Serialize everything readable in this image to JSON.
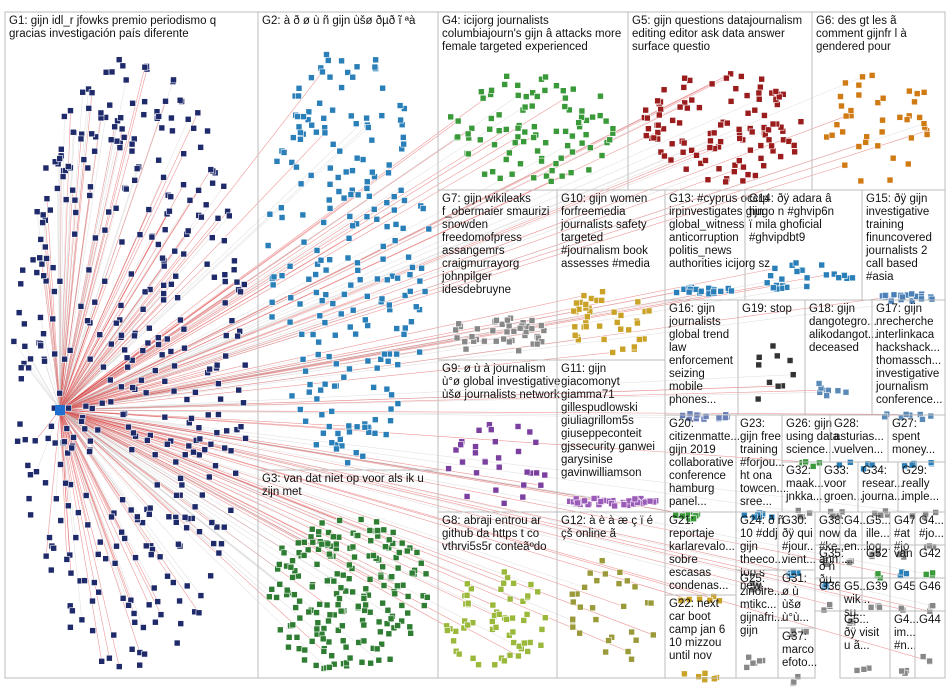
{
  "groups": [
    {
      "lines": [
        "G1: gijn idl_r jfowks premio periodismo q",
        "gracias investigación país diferente"
      ]
    },
    {
      "lines": [
        "G2: à ð ø ù ñ gijn ùšø ðµð ĩ ªà"
      ]
    },
    {
      "lines": [
        "G3: van dat niet op voor als ik u",
        "zijn met"
      ]
    },
    {
      "lines": [
        "G4: icijorg journalists",
        "columbiajourn's gijn â attacks more",
        "female targeted experienced"
      ]
    },
    {
      "lines": [
        "G5: gijn questions datajournalism",
        "editing editor ask data answer",
        "surface questio"
      ]
    },
    {
      "lines": [
        "G6: des gt les ã",
        "comment gijnfr l à",
        "gendered pour"
      ]
    },
    {
      "lines": [
        "G7: gijn wikileaks",
        "f_obermaier smaurizi",
        "snowden",
        "freedomofpress",
        "assangemrs",
        "craigmurrayorg",
        "johnpilger",
        "idesdebruyne"
      ]
    },
    {
      "lines": [
        "G10: gijn women",
        "forfreemedia",
        "journalists safety",
        "targeted",
        "#journalism book",
        "assesses #media"
      ]
    },
    {
      "lines": [
        "G13: #cyprus occrp",
        "irpinvestigates gijn",
        "global_witness",
        "anticorruption",
        "politis_news",
        "authorities icijorg sz"
      ]
    },
    {
      "lines": [
        "G14: ðÿ adara â",
        "hugo n #ghvip6n",
        "ï mila ghoficial",
        "#ghvipdbt9"
      ]
    },
    {
      "lines": [
        "G15: ðÿ gijn",
        "investigative",
        "training",
        "finuncovered",
        "journalists 2",
        "call based",
        "#asia"
      ]
    },
    {
      "lines": [
        "G16: gijn",
        "journalists",
        "global trend",
        "law",
        "enforcement",
        "seizing",
        "mobile",
        "phones..."
      ]
    },
    {
      "lines": [
        "G19: stop"
      ]
    },
    {
      "lines": [
        "G18: gijn",
        "dangotegro...",
        "alikodangot...",
        "deceased"
      ]
    },
    {
      "lines": [
        "G17: gijn",
        "nrecherche",
        "interlinkaca",
        "hackshack...",
        "thomassch...",
        "investigative",
        "journalism",
        "conference..."
      ]
    },
    {
      "lines": [
        "G9: ø ù à journalism",
        "ù°ø global investigative",
        "ùšø journalists network"
      ]
    },
    {
      "lines": [
        "G11: gijn",
        "giacomonyt",
        "giamma71",
        "gillespudlowski",
        "giuliagrillom5s",
        "giuseppeconteit",
        "gjssecurity ganwei",
        "garysinise",
        "gavinwilliamson"
      ]
    },
    {
      "lines": [
        "G20:",
        "citizenmatte...",
        "gijn 2019",
        "collaborative",
        "conference",
        "hamburg",
        "panel..."
      ]
    },
    {
      "lines": [
        "G23:",
        "gijn free",
        "training",
        "#forjou...",
        "ht ona",
        "towcen...",
        "sree..."
      ]
    },
    {
      "lines": [
        "G26: gijn",
        "using data",
        "science..."
      ]
    },
    {
      "lines": [
        "G28:",
        "asturias...",
        "vuelven..."
      ]
    },
    {
      "lines": [
        "G27:",
        "spent",
        "money..."
      ]
    },
    {
      "lines": [
        "G32:",
        "maak...",
        "jnkka..."
      ]
    },
    {
      "lines": [
        "G33:",
        "voor",
        "groen..."
      ]
    },
    {
      "lines": [
        "G34:",
        "resear...",
        "journa..."
      ]
    },
    {
      "lines": [
        "G29:",
        "really",
        "imple..."
      ]
    },
    {
      "lines": [
        "G8: abraji entrou ar",
        "github da https t co",
        "vthrvi5s5r conteãºdo"
      ]
    },
    {
      "lines": [
        "G12: à è à æ ç ï é",
        "çš online ã"
      ]
    },
    {
      "lines": [
        "G21:",
        "reportaje",
        "karlarevalo...",
        "sobre",
        "escasas",
        "condenas..."
      ]
    },
    {
      "lines": [
        "G24: ð ñ",
        "10 #ddj",
        "gijn",
        "theeco...",
        "top s",
        "new..."
      ]
    },
    {
      "lines": [
        "G30:",
        "ðÿ qui",
        "#jour...",
        "vient..."
      ]
    },
    {
      "lines": [
        "G38:",
        "now",
        "#ke...",
        "ann..."
      ]
    },
    {
      "lines": [
        "G4...",
        "da",
        "en...",
        "..."
      ]
    },
    {
      "lines": [
        "G5...",
        "ille...",
        "log..."
      ]
    },
    {
      "lines": [
        "G47",
        "#at",
        "#jo"
      ]
    },
    {
      "lines": [
        "G4...",
        "#jo..."
      ]
    },
    {
      "lines": [
        "G35:",
        "ð ñ",
        "ðµ..."
      ]
    },
    {
      "lines": [
        "G52"
      ]
    },
    {
      "lines": [
        "van"
      ]
    },
    {
      "lines": [
        "G42"
      ]
    },
    {
      "lines": [
        "G31:",
        "ø ù",
        "ùšø",
        "ù°ù..."
      ]
    },
    {
      "lines": [
        "G36"
      ]
    },
    {
      "lines": [
        "G5...",
        "wik...",
        "su..."
      ]
    },
    {
      "lines": [
        "G39"
      ]
    },
    {
      "lines": [
        "G45"
      ]
    },
    {
      "lines": [
        "G46"
      ]
    },
    {
      "lines": [
        "G22: next",
        "car boot",
        "camp jan 6",
        "10 mizzou",
        "until nov"
      ]
    },
    {
      "lines": [
        "G25:",
        "zinoire...",
        "mtikc...",
        "gijnafri...",
        "gijn"
      ]
    },
    {
      "lines": [
        "G37:",
        "marco",
        "efoto..."
      ]
    },
    {
      "lines": [
        "G5...",
        "ðÿ visit",
        "u ã..."
      ]
    },
    {
      "lines": [
        "G4...",
        "im...",
        "#n..."
      ]
    },
    {
      "lines": [
        "G44"
      ]
    }
  ]
}
